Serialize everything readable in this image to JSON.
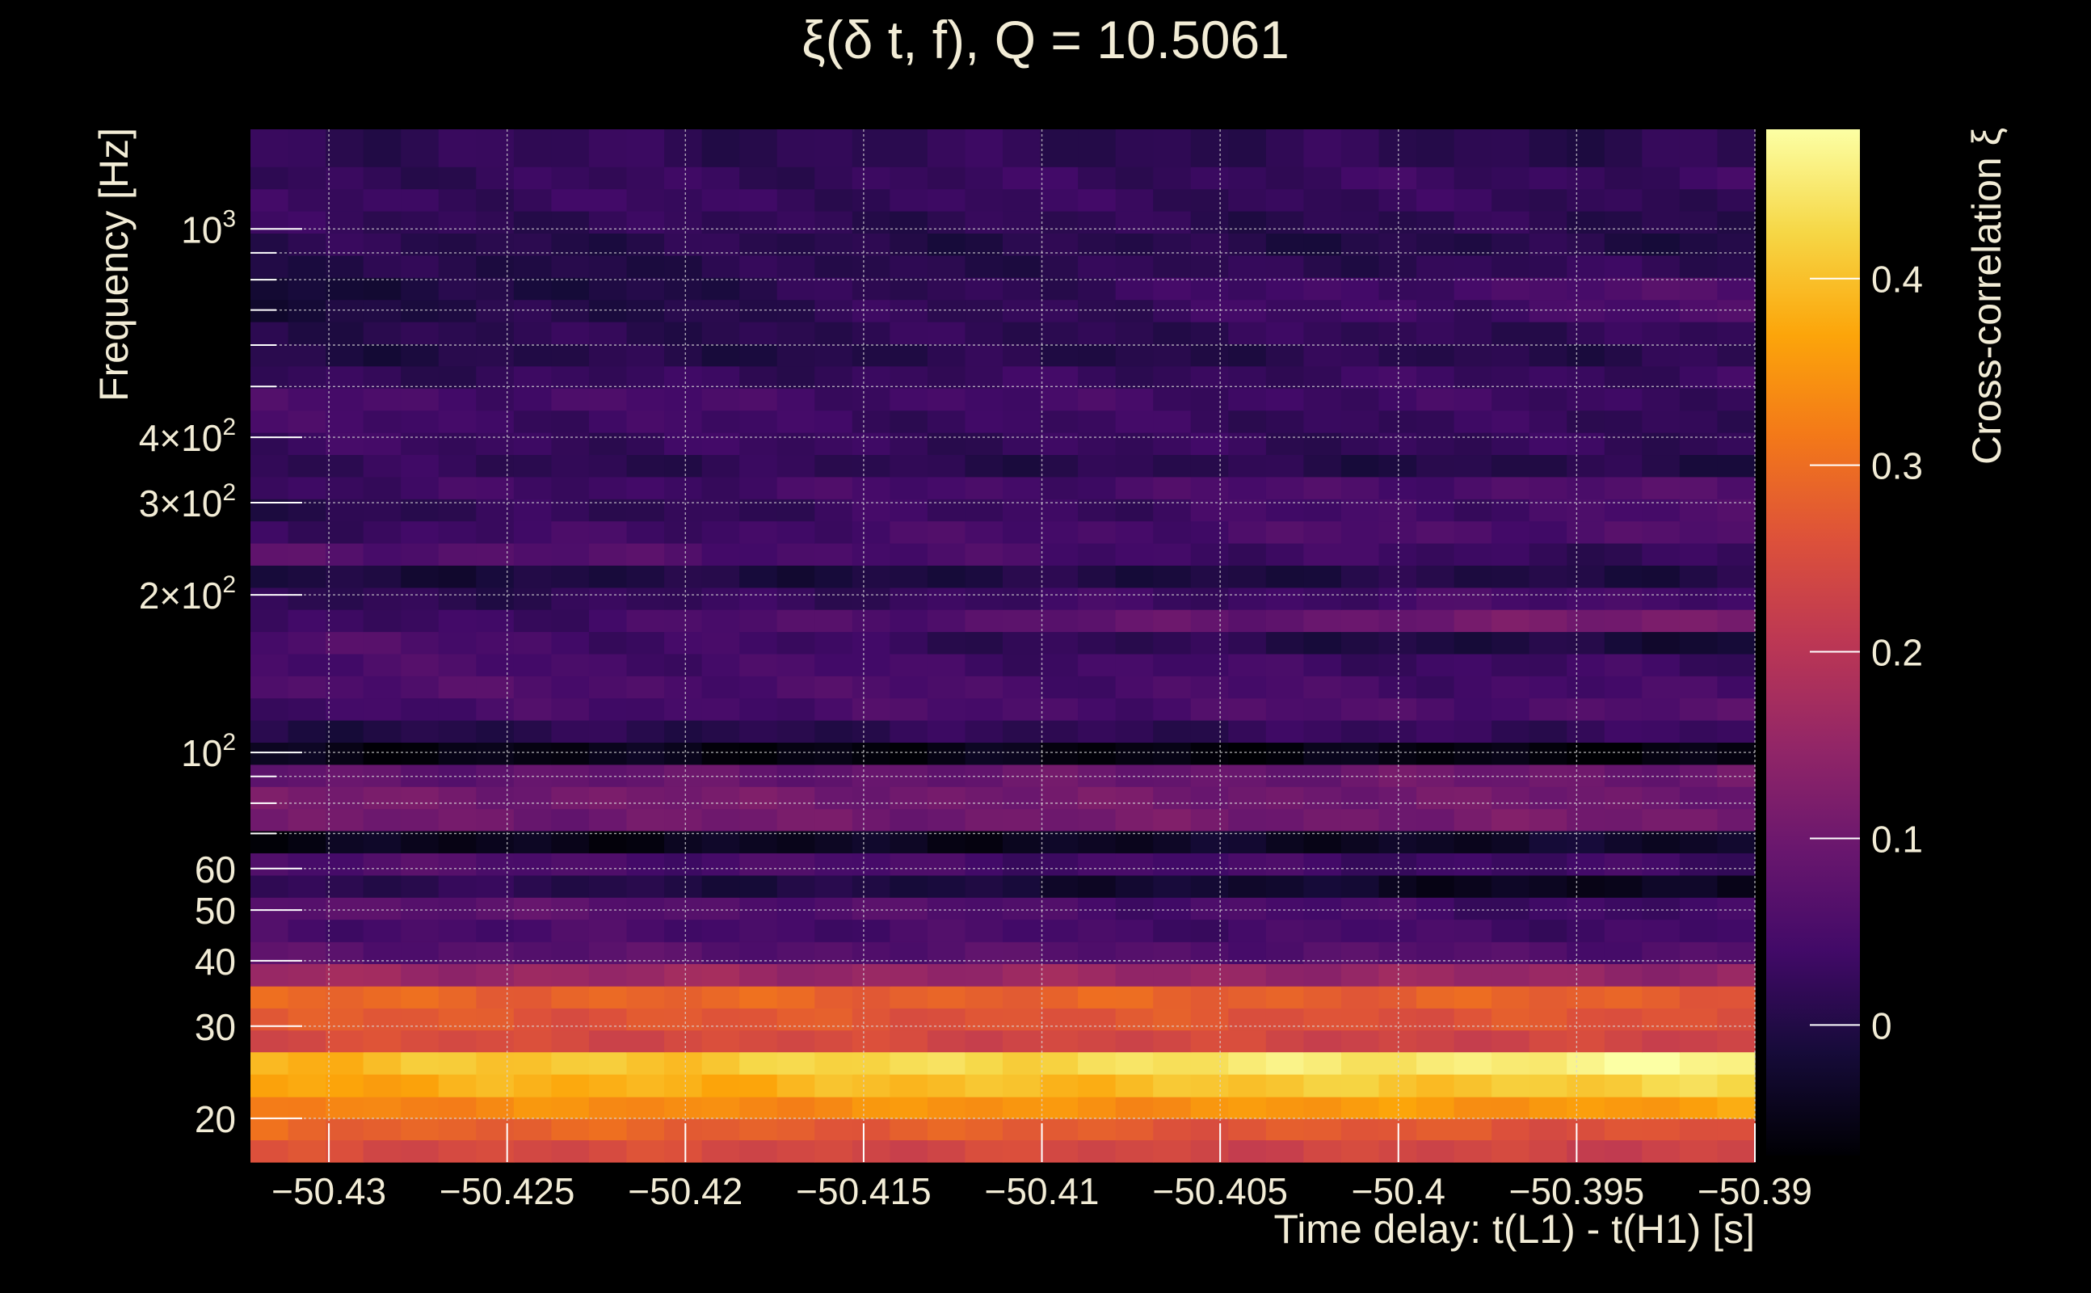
{
  "chart_data": {
    "type": "heatmap",
    "title": "ξ(δ t, f), Q = 10.5061",
    "xlabel": "Time delay: t(L1) - t(H1) [s]",
    "ylabel": "Frequency [Hz]",
    "colorbar_label": "Cross-correlation ξ",
    "x_range": [
      -50.4322,
      -50.39
    ],
    "y_range": [
      16.5,
      1550
    ],
    "y_scale": "log",
    "color_range": [
      -0.07,
      0.48
    ],
    "colormap": [
      "#000004",
      "#160b39",
      "#420a68",
      "#6a176e",
      "#932667",
      "#bc3754",
      "#dd513a",
      "#f37819",
      "#fca50a",
      "#f6d746",
      "#fcffa4"
    ],
    "grid": true,
    "x_ticks": [
      {
        "value": -50.43,
        "label": "−50.43"
      },
      {
        "value": -50.425,
        "label": "−50.425"
      },
      {
        "value": -50.42,
        "label": "−50.42"
      },
      {
        "value": -50.415,
        "label": "−50.415"
      },
      {
        "value": -50.41,
        "label": "−50.41"
      },
      {
        "value": -50.405,
        "label": "−50.405"
      },
      {
        "value": -50.4,
        "label": "−50.4"
      },
      {
        "value": -50.395,
        "label": "−50.395"
      },
      {
        "value": -50.39,
        "label": "−50.39"
      }
    ],
    "y_ticks": [
      {
        "value": 20,
        "base": "20",
        "exp": ""
      },
      {
        "value": 30,
        "base": "30",
        "exp": ""
      },
      {
        "value": 40,
        "base": "40",
        "exp": ""
      },
      {
        "value": 50,
        "base": "50",
        "exp": ""
      },
      {
        "value": 60,
        "base": "60",
        "exp": ""
      },
      {
        "value": 100,
        "base": "10",
        "exp": "2"
      },
      {
        "value": 200,
        "base": "2×10",
        "exp": "2"
      },
      {
        "value": 300,
        "base": "3×10",
        "exp": "2"
      },
      {
        "value": 400,
        "base": "4×10",
        "exp": "2"
      },
      {
        "value": 1000,
        "base": "10",
        "exp": "3"
      }
    ],
    "y_minor_ticks": [
      70,
      80,
      90,
      500,
      600,
      700,
      800,
      900
    ],
    "colorbar_ticks": [
      {
        "value": 0,
        "label": "0"
      },
      {
        "value": 0.1,
        "label": "0.1"
      },
      {
        "value": 0.2,
        "label": "0.2"
      },
      {
        "value": 0.3,
        "label": "0.3"
      },
      {
        "value": 0.4,
        "label": "0.4"
      }
    ],
    "x_bins": 40,
    "rows": [
      {
        "f_low": 16.5,
        "f_high": 18.2,
        "start": 0.25,
        "end": 0.23
      },
      {
        "f_low": 18.2,
        "f_high": 20.0,
        "start": 0.29,
        "end": 0.26
      },
      {
        "f_low": 20.0,
        "f_high": 22.0,
        "start": 0.33,
        "end": 0.36
      },
      {
        "f_low": 22.0,
        "f_high": 24.3,
        "start": 0.37,
        "end": 0.42
      },
      {
        "f_low": 24.3,
        "f_high": 26.8,
        "start": 0.39,
        "end": 0.47
      },
      {
        "f_low": 26.8,
        "f_high": 29.5,
        "start": 0.25,
        "end": 0.23
      },
      {
        "f_low": 29.5,
        "f_high": 32.5,
        "start": 0.27,
        "end": 0.26
      },
      {
        "f_low": 32.5,
        "f_high": 35.8,
        "start": 0.29,
        "end": 0.28
      },
      {
        "f_low": 35.8,
        "f_high": 39.5,
        "start": 0.16,
        "end": 0.15
      },
      {
        "f_low": 39.5,
        "f_high": 43.5,
        "start": 0.07,
        "end": 0.06
      },
      {
        "f_low": 43.5,
        "f_high": 48.0,
        "start": 0.05,
        "end": 0.04
      },
      {
        "f_low": 48.0,
        "f_high": 52.9,
        "start": 0.08,
        "end": 0.03
      },
      {
        "f_low": 52.9,
        "f_high": 58.3,
        "start": 0.02,
        "end": -0.05
      },
      {
        "f_low": 58.3,
        "f_high": 64.3,
        "start": 0.06,
        "end": 0.03
      },
      {
        "f_low": 64.3,
        "f_high": 70.9,
        "start": -0.05,
        "end": -0.03
      },
      {
        "f_low": 70.9,
        "f_high": 78.1,
        "start": 0.1,
        "end": 0.11
      },
      {
        "f_low": 78.1,
        "f_high": 86.1,
        "start": 0.11,
        "end": 0.1
      },
      {
        "f_low": 86.1,
        "f_high": 94.9,
        "start": 0.08,
        "end": 0.1
      },
      {
        "f_low": 94.9,
        "f_high": 104.6,
        "start": -0.05,
        "end": -0.06
      },
      {
        "f_low": 104.6,
        "f_high": 115.3,
        "start": 0.0,
        "end": 0.03
      },
      {
        "f_low": 115.3,
        "f_high": 127.1,
        "start": 0.04,
        "end": 0.06
      },
      {
        "f_low": 127.1,
        "f_high": 140.1,
        "start": 0.06,
        "end": 0.04
      },
      {
        "f_low": 140.1,
        "f_high": 154.4,
        "start": 0.05,
        "end": 0.03
      },
      {
        "f_low": 154.4,
        "f_high": 170.2,
        "start": 0.06,
        "end": -0.02
      },
      {
        "f_low": 170.2,
        "f_high": 187.6,
        "start": 0.02,
        "end": 0.12
      },
      {
        "f_low": 187.6,
        "f_high": 206.7,
        "start": 0.01,
        "end": 0.05
      },
      {
        "f_low": 206.7,
        "f_high": 227.9,
        "start": -0.01,
        "end": 0.0
      },
      {
        "f_low": 227.9,
        "f_high": 251.2,
        "start": 0.07,
        "end": 0.02
      },
      {
        "f_low": 251.2,
        "f_high": 276.9,
        "start": 0.03,
        "end": 0.06
      },
      {
        "f_low": 276.9,
        "f_high": 305.2,
        "start": 0.01,
        "end": 0.05
      },
      {
        "f_low": 305.2,
        "f_high": 336.4,
        "start": 0.03,
        "end": 0.06
      },
      {
        "f_low": 336.4,
        "f_high": 370.8,
        "start": 0.02,
        "end": 0.0
      },
      {
        "f_low": 370.8,
        "f_high": 408.7,
        "start": 0.03,
        "end": 0.02
      },
      {
        "f_low": 408.7,
        "f_high": 450.5,
        "start": 0.04,
        "end": 0.02
      },
      {
        "f_low": 450.5,
        "f_high": 496.6,
        "start": 0.05,
        "end": 0.03
      },
      {
        "f_low": 496.6,
        "f_high": 547.4,
        "start": 0.02,
        "end": 0.03
      },
      {
        "f_low": 547.4,
        "f_high": 603.4,
        "start": 0.0,
        "end": 0.01
      },
      {
        "f_low": 603.4,
        "f_high": 665.1,
        "start": 0.01,
        "end": 0.02
      },
      {
        "f_low": 665.1,
        "f_high": 733.1,
        "start": -0.01,
        "end": 0.05
      },
      {
        "f_low": 733.1,
        "f_high": 808.1,
        "start": -0.02,
        "end": 0.06
      },
      {
        "f_low": 808.1,
        "f_high": 890.8,
        "start": 0.0,
        "end": 0.02
      },
      {
        "f_low": 890.8,
        "f_high": 981.9,
        "start": 0.01,
        "end": 0.0
      },
      {
        "f_low": 981.9,
        "f_high": 1082.4,
        "start": 0.02,
        "end": 0.01
      },
      {
        "f_low": 1082.4,
        "f_high": 1193.1,
        "start": 0.03,
        "end": 0.02
      },
      {
        "f_low": 1193.1,
        "f_high": 1315.2,
        "start": 0.02,
        "end": 0.03
      },
      {
        "f_low": 1315.2,
        "f_high": 1550.0,
        "start": 0.02,
        "end": 0.01
      }
    ]
  }
}
